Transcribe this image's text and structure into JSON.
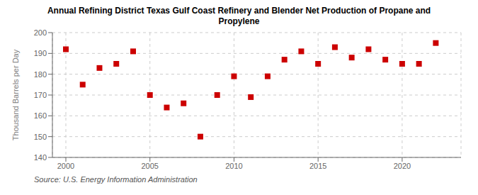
{
  "chart_data": {
    "type": "scatter",
    "title": "Annual Refining District Texas Gulf Coast Refinery and Blender Net Production of Propane and\nPropylene",
    "ylabel": "Thousand Barrels per Day",
    "annotations": [
      "Source: U.S. Energy Information Administration"
    ],
    "x": [
      2000,
      2001,
      2002,
      2003,
      2004,
      2005,
      2006,
      2007,
      2008,
      2009,
      2010,
      2011,
      2012,
      2013,
      2014,
      2015,
      2016,
      2017,
      2018,
      2019,
      2020,
      2021,
      2022
    ],
    "values": [
      192,
      175,
      183,
      185,
      191,
      170,
      164,
      166,
      150,
      170,
      179,
      169,
      179,
      187,
      191,
      185,
      193,
      188,
      192,
      187,
      185,
      185,
      195
    ],
    "xlim": [
      1999.2,
      2023.5
    ],
    "ylim": [
      140,
      200
    ],
    "xticks": [
      2000,
      2005,
      2010,
      2015,
      2020
    ],
    "yticks": [
      140,
      150,
      160,
      170,
      180,
      190,
      200
    ],
    "grid": true,
    "color": "#cc0000",
    "marker": "square"
  }
}
